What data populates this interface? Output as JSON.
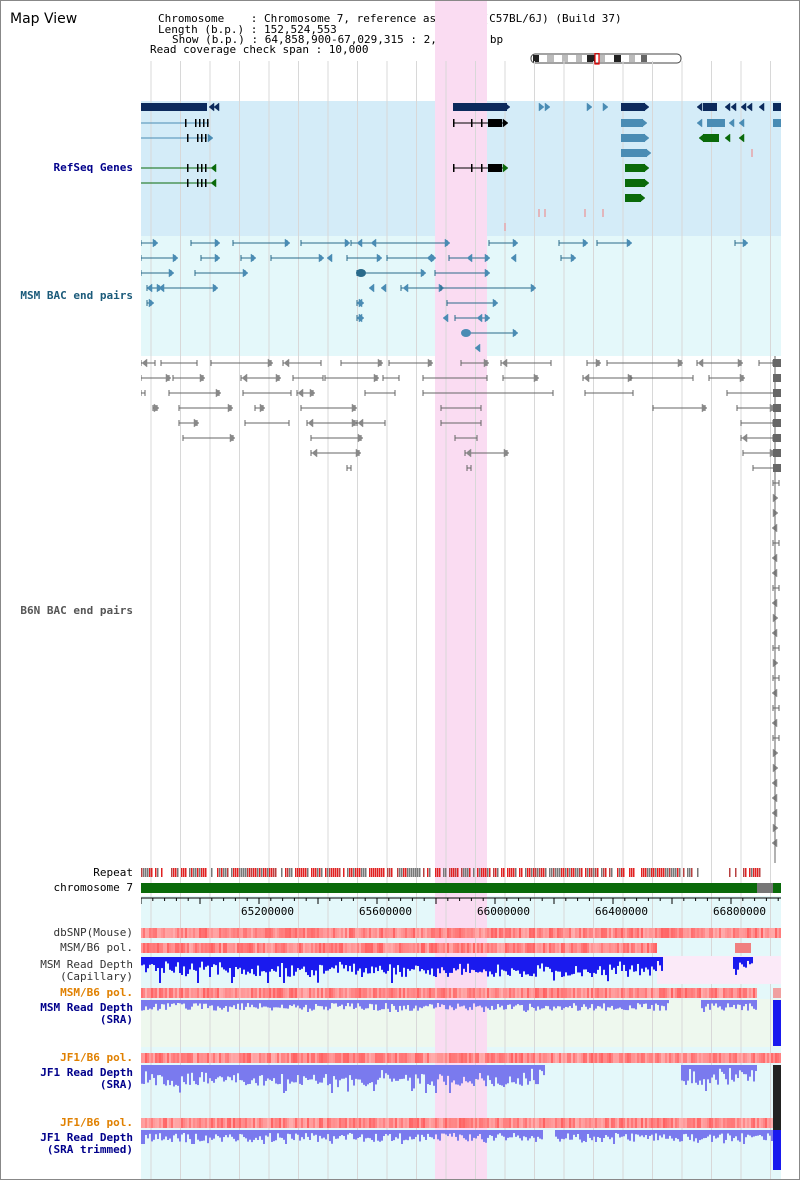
{
  "window": {
    "title": "Map View"
  },
  "info": {
    "line1": "Chromosome    : Chromosome 7, reference assembly (C57BL/6J) (Build 37)",
    "line2": "Length (b.p.) : 152,524,553",
    "line3": "Show (b.p.) : 64,858,900-67,029,315 : 2,170,416 bp",
    "line4": "Read coverage check span : 10,000"
  },
  "tracks": {
    "refseq": "RefSeq Genes",
    "msm_bac": "MSM BAC end pairs",
    "b6n_bac": "B6N BAC end pairs",
    "repeat": "Repeat",
    "chromosome": "chromosome 7",
    "dbsnp": "dbSNP(Mouse)",
    "msm_b6_pol": "MSM/B6 pol.",
    "msm_depth_cap_1": "MSM Read Depth",
    "msm_depth_cap_2": "(Capillary)",
    "msm_b6_pol2": "MSM/B6 pol.",
    "msm_depth_sra_1": "MSM Read Depth",
    "msm_depth_sra_2": "(SRA)",
    "jf1_b6_pol": "JF1/B6 pol.",
    "jf1_depth_sra_1": "JF1 Read Depth",
    "jf1_depth_sra_2": "(SRA)",
    "jf1_b6_pol2": "JF1/B6 pol.",
    "jf1_depth_trim_1": "JF1 Read Depth",
    "jf1_depth_trim_2": "(SRA trimmed)"
  },
  "axis": {
    "ticks": [
      "65200000",
      "65600000",
      "66000000",
      "66400000",
      "66800000"
    ]
  },
  "colors": {
    "highlight": "#fadcf2",
    "refseq_bg": "#d4ecf8",
    "msm_bg": "#e4f8fa",
    "gene_dark": "#0c2a5c",
    "gene_mid": "#4a8cb4",
    "gene_green": "#0a6a0a",
    "msm_pair": "#2a6a8a",
    "b6n_pair": "#666666",
    "chromosome": "#0a6a0a",
    "depth_blue": "#1a1aee",
    "depth_light": "#7a7aee",
    "label_blue": "#00008b",
    "label_orange": "#e08000"
  }
}
